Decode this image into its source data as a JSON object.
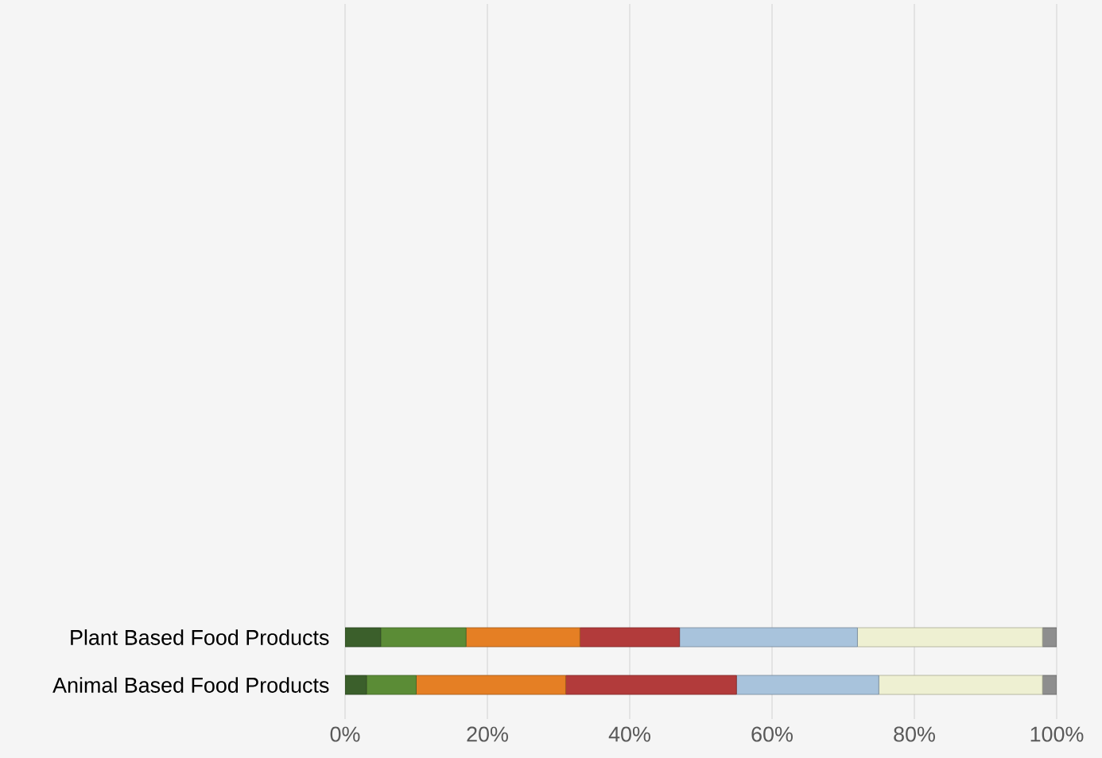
{
  "chart_data": {
    "type": "bar",
    "orientation": "horizontal",
    "stacked": true,
    "categories": [
      "Plant Based Food Products",
      "Animal Based Food Products"
    ],
    "series": [
      {
        "color": "#3b5f2b",
        "values": [
          5,
          3
        ]
      },
      {
        "color": "#5b8c36",
        "values": [
          12,
          7
        ]
      },
      {
        "color": "#e57f24",
        "values": [
          16,
          21
        ]
      },
      {
        "color": "#b23b3b",
        "values": [
          14,
          24
        ]
      },
      {
        "color": "#a8c3dc",
        "values": [
          25,
          20
        ]
      },
      {
        "color": "#eef0d2",
        "values": [
          26,
          23
        ]
      },
      {
        "color": "#8e8e8e",
        "values": [
          2,
          2
        ]
      }
    ],
    "xlim": [
      0,
      100
    ],
    "xticks": [
      {
        "value": 0,
        "label": "0%"
      },
      {
        "value": 20,
        "label": "20%"
      },
      {
        "value": 40,
        "label": "40%"
      },
      {
        "value": 60,
        "label": "60%"
      },
      {
        "value": 80,
        "label": "80%"
      },
      {
        "value": 100,
        "label": "100%"
      }
    ],
    "grid": "x"
  }
}
